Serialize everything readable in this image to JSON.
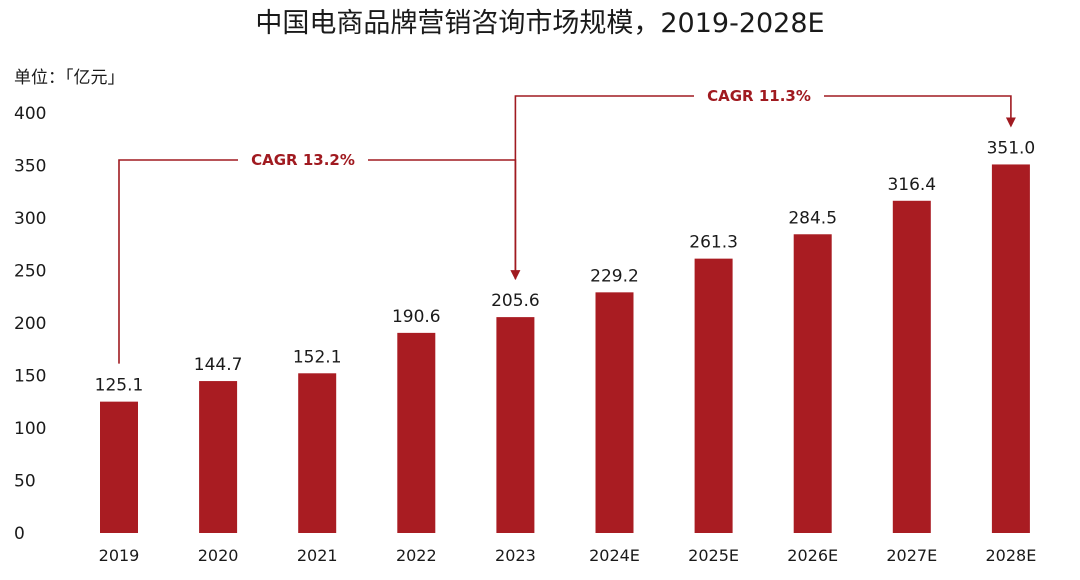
{
  "chart_data": {
    "type": "bar",
    "title": "中国电商品牌营销咨询市场规模，2019-2028E",
    "unit_label": "单位：「亿元」",
    "categories": [
      "2019",
      "2020",
      "2021",
      "2022",
      "2023",
      "2024E",
      "2025E",
      "2026E",
      "2027E",
      "2028E"
    ],
    "values": [
      125.1,
      144.7,
      152.1,
      190.6,
      205.6,
      229.2,
      261.3,
      284.5,
      316.4,
      351.0
    ],
    "data_labels": [
      "125.1",
      "144.7",
      "152.1",
      "190.6",
      "205.6",
      "229.2",
      "261.3",
      "284.5",
      "316.4",
      "351.0"
    ],
    "yticks": [
      0,
      50,
      100,
      150,
      200,
      250,
      300,
      350,
      400
    ],
    "ylim": [
      0,
      400
    ],
    "grid": false,
    "bar_color": "#a91c22",
    "annotations": [
      {
        "label": "CAGR 13.2%",
        "from": "2019",
        "to": "2023"
      },
      {
        "label": "CAGR 11.3%",
        "from": "2023",
        "to": "2028E"
      }
    ]
  }
}
